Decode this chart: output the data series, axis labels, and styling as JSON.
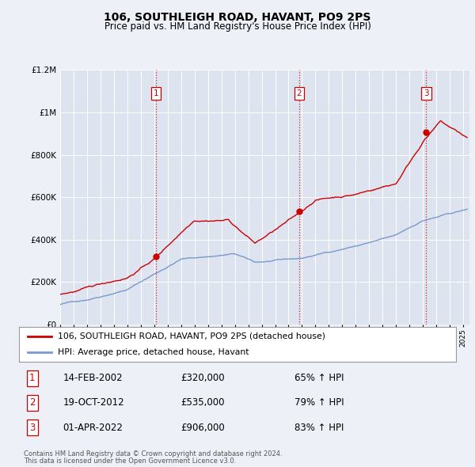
{
  "title": "106, SOUTHLEIGH ROAD, HAVANT, PO9 2PS",
  "subtitle": "Price paid vs. HM Land Registry's House Price Index (HPI)",
  "bg_color": "#eef0f8",
  "plot_bg_color": "#dde4f0",
  "red_color": "#cc0000",
  "blue_color": "#7799cc",
  "ylim": [
    0,
    1200000
  ],
  "yticks": [
    0,
    200000,
    400000,
    600000,
    800000,
    1000000,
    1200000
  ],
  "ytick_labels": [
    "£0",
    "£200K",
    "£400K",
    "£600K",
    "£800K",
    "£1M",
    "£1.2M"
  ],
  "xmin": 1995.0,
  "xmax": 2025.5,
  "sale_dates": [
    2002.12,
    2012.8,
    2022.25
  ],
  "sale_prices": [
    320000,
    535000,
    906000
  ],
  "sale_labels": [
    "1",
    "2",
    "3"
  ],
  "legend_line1": "106, SOUTHLEIGH ROAD, HAVANT, PO9 2PS (detached house)",
  "legend_line2": "HPI: Average price, detached house, Havant",
  "table_rows": [
    {
      "num": "1",
      "date": "14-FEB-2002",
      "price": "£320,000",
      "pct": "65% ↑ HPI"
    },
    {
      "num": "2",
      "date": "19-OCT-2012",
      "price": "£535,000",
      "pct": "79% ↑ HPI"
    },
    {
      "num": "3",
      "date": "01-APR-2022",
      "price": "£906,000",
      "pct": "83% ↑ HPI"
    }
  ],
  "footnote1": "Contains HM Land Registry data © Crown copyright and database right 2024.",
  "footnote2": "This data is licensed under the Open Government Licence v3.0."
}
